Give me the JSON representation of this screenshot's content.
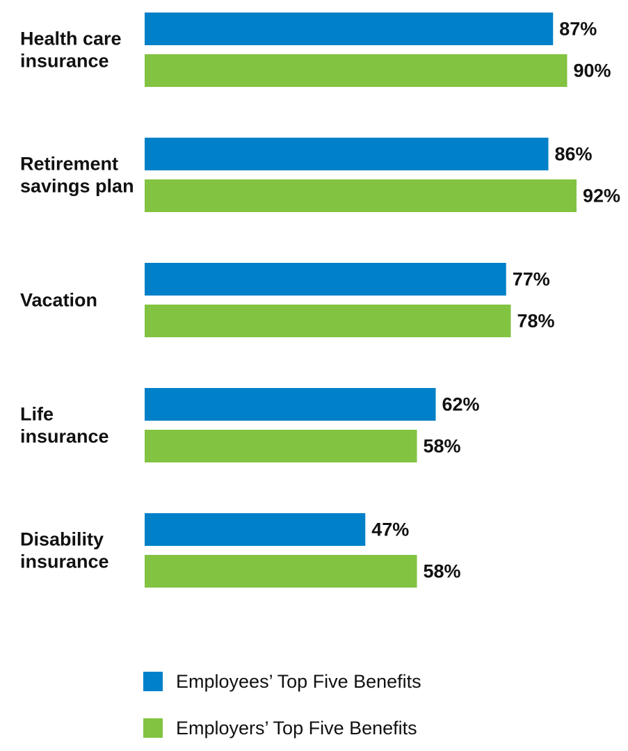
{
  "chart_data": {
    "type": "bar",
    "orientation": "horizontal",
    "categories": [
      [
        "Health care",
        "insurance"
      ],
      [
        "Retirement",
        "savings plan"
      ],
      [
        "Vacation"
      ],
      [
        "Life",
        "insurance"
      ],
      [
        "Disability",
        "insurance"
      ]
    ],
    "series": [
      {
        "name": "Employees’ Top Five Benefits",
        "color": "#0080c8",
        "values": [
          87,
          86,
          77,
          62,
          47
        ]
      },
      {
        "name": "Employers’ Top Five Benefits",
        "color": "#82c341",
        "values": [
          90,
          92,
          78,
          58,
          58
        ]
      }
    ],
    "value_suffix": "%",
    "xlim": [
      0,
      100
    ],
    "grid": false,
    "legend_position": "bottom"
  }
}
